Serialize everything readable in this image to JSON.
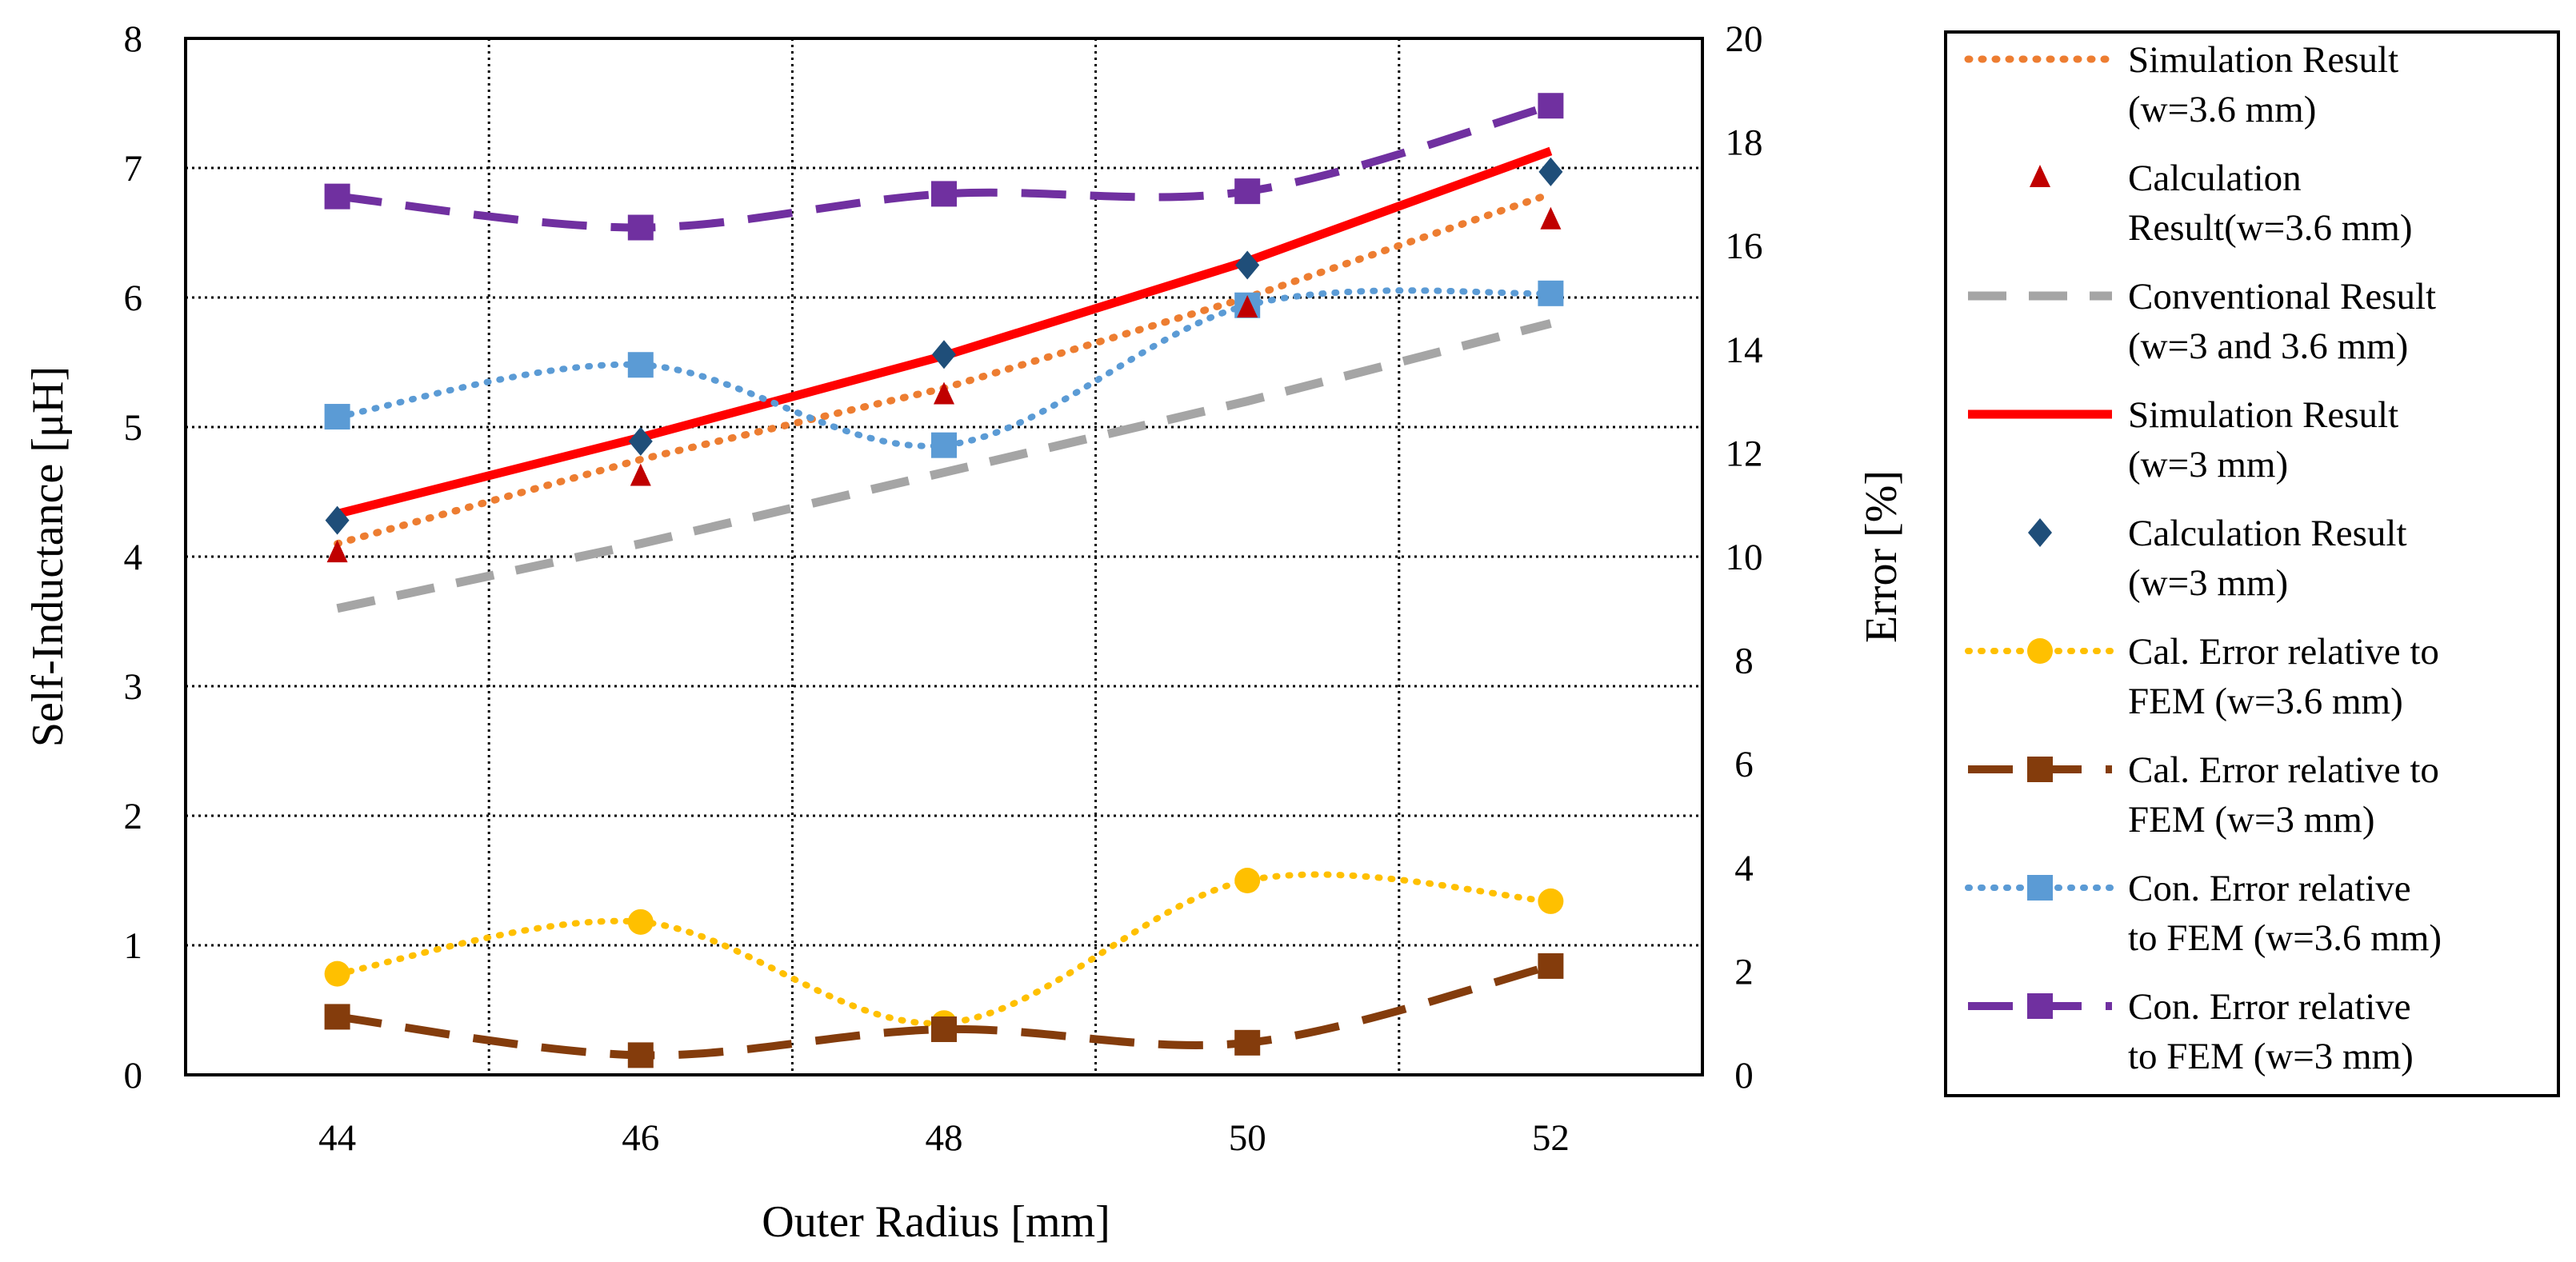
{
  "chart_data": {
    "type": "line",
    "xlabel": "Outer Radius [mm]",
    "ylabel": "Self-Inductance [μH]",
    "y2label": "Error [%]",
    "x": [
      44,
      46,
      48,
      50,
      52
    ],
    "xticks": [
      "44",
      "46",
      "48",
      "50",
      "52"
    ],
    "xlim": [
      43,
      53
    ],
    "ylim": [
      0,
      8
    ],
    "y2lim": [
      0,
      20
    ],
    "yticks": [
      "0",
      "1",
      "2",
      "3",
      "4",
      "5",
      "6",
      "7",
      "8"
    ],
    "y2ticks": [
      "0",
      "2",
      "4",
      "6",
      "8",
      "10",
      "12",
      "14",
      "16",
      "18",
      "20"
    ],
    "grid": "dotted",
    "legend_position": "right",
    "series": [
      {
        "name": "Simulation Result (w=3.6 mm)",
        "axis": "left",
        "color": "#ED7D31",
        "values": [
          4.1,
          4.75,
          5.3,
          6.0,
          6.8
        ]
      },
      {
        "name": "Calculation Result(w=3.6 mm)",
        "axis": "left",
        "color": "#C00000",
        "values": [
          4.03,
          4.62,
          5.25,
          5.92,
          6.6
        ]
      },
      {
        "name": "Conventional Result (w=3 and 3.6 mm)",
        "axis": "left",
        "color": "#A5A5A5",
        "values": [
          3.6,
          4.1,
          4.65,
          5.2,
          5.8
        ]
      },
      {
        "name": "Simulation Result (w=3 mm)",
        "axis": "left",
        "color": "#FF0000",
        "values": [
          4.33,
          4.92,
          5.55,
          6.28,
          7.13
        ]
      },
      {
        "name": "Calculation Result (w=3 mm)",
        "axis": "left",
        "color": "#1F4E79",
        "values": [
          4.28,
          4.89,
          5.56,
          6.25,
          6.97
        ]
      },
      {
        "name": "Cal. Error relative to FEM (w=3.6 mm)",
        "axis": "right",
        "color": "#FFC000",
        "values": [
          1.95,
          2.95,
          1.0,
          3.75,
          3.35
        ]
      },
      {
        "name": "Cal. Error relative to FEM (w=3 mm)",
        "axis": "right",
        "color": "#843C0C",
        "values": [
          1.12,
          0.38,
          0.88,
          0.62,
          2.1
        ]
      },
      {
        "name": "Con. Error relative to FEM (w=3.6 mm)",
        "axis": "right",
        "color": "#5B9BD5",
        "values": [
          12.7,
          13.7,
          12.15,
          14.85,
          15.08
        ]
      },
      {
        "name": "Con. Error relative to FEM (w=3 mm)",
        "axis": "right",
        "color": "#7030A0",
        "values": [
          16.95,
          16.35,
          17.0,
          17.05,
          18.7
        ]
      }
    ],
    "legend": [
      {
        "line1": "Simulation Result",
        "line2": "(w=3.6 mm)"
      },
      {
        "line1": "Calculation",
        "line2": "Result(w=3.6 mm)"
      },
      {
        "line1": "Conventional Result",
        "line2": "(w=3 and 3.6 mm)"
      },
      {
        "line1": "Simulation Result",
        "line2": "(w=3 mm)"
      },
      {
        "line1": "Calculation Result",
        "line2": "(w=3 mm)"
      },
      {
        "line1": "Cal. Error relative to",
        "line2": "FEM (w=3.6 mm)"
      },
      {
        "line1": "Cal. Error relative to",
        "line2": "FEM (w=3 mm)"
      },
      {
        "line1": "Con. Error relative",
        "line2": "to FEM (w=3.6 mm)"
      },
      {
        "line1": "Con. Error relative",
        "line2": "to FEM (w=3 mm)"
      }
    ]
  }
}
